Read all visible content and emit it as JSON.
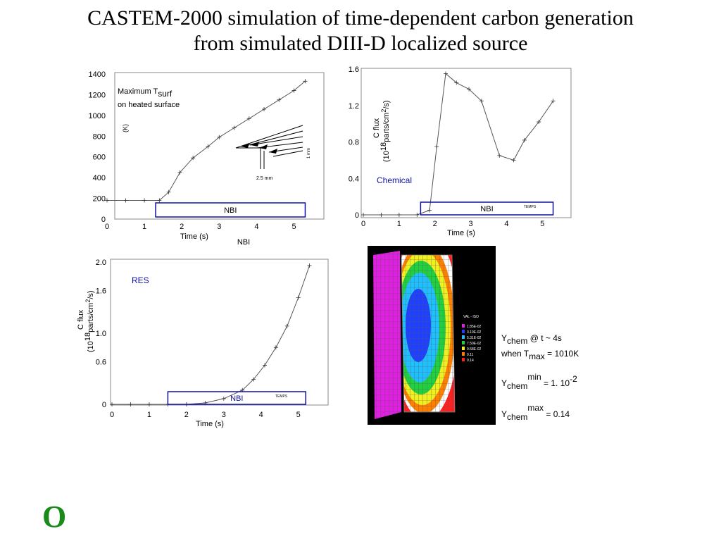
{
  "slide": {
    "title_line1": "CASTEM-2000 simulation of time-dependent carbon generation",
    "title_line2": "from simulated DIII-D localized source",
    "logo_text": "O"
  },
  "chart_data": [
    {
      "type": "line",
      "id": "temperature",
      "annotation_lines": [
        "Maximum T",
        "on heated surface"
      ],
      "annotation_subscript": "surf",
      "ylabel": "(K)",
      "xlabel": "Time (s)",
      "x_ticks": [
        "0",
        "1",
        "2",
        "3",
        "4",
        "5"
      ],
      "y_ticks": [
        "0",
        "200",
        "400",
        "600",
        "800",
        "1000",
        "1200",
        "1400"
      ],
      "xlim": [
        0,
        5.8
      ],
      "ylim": [
        0,
        1400
      ],
      "nbi_label": "NBI",
      "nbi_label_below": "NBI",
      "nbi_range": [
        1.3,
        5.3
      ],
      "inset_labels": {
        "width": "2.5 mm",
        "height": "1 mm"
      },
      "series": [
        {
          "x": [
            0,
            0.5,
            1.0,
            1.4,
            1.65,
            1.95,
            2.3,
            2.7,
            3.0,
            3.4,
            3.8,
            4.2,
            4.6,
            5.0,
            5.3
          ],
          "y": [
            180,
            180,
            180,
            180,
            260,
            450,
            590,
            700,
            790,
            880,
            970,
            1060,
            1150,
            1240,
            1330
          ]
        }
      ]
    },
    {
      "type": "line",
      "id": "chemical",
      "ylabel": "C flux",
      "ylabel_units": "(10",
      "ylabel_exp": "18",
      "ylabel_units2": "parts/cm",
      "ylabel_exp2": "2",
      "ylabel_units3": "/s)",
      "xlabel": "Time (s)",
      "x_ticks": [
        "0",
        "1",
        "2",
        "3",
        "4",
        "5"
      ],
      "y_ticks": [
        "0",
        "0.4",
        "0.8",
        "1.2",
        "1.6"
      ],
      "xlim": [
        0,
        5.8
      ],
      "ylim": [
        0,
        1.6
      ],
      "series_label": "Chemical",
      "nbi_label": "NBI",
      "temps_label": "TEMPS",
      "nbi_range": [
        1.6,
        5.3
      ],
      "series": [
        {
          "x": [
            0,
            0.5,
            1.0,
            1.5,
            1.85,
            2.05,
            2.3,
            2.6,
            2.95,
            3.3,
            3.8,
            4.2,
            4.5,
            4.9,
            5.3
          ],
          "y": [
            0,
            0,
            0,
            0,
            0.05,
            0.75,
            1.55,
            1.45,
            1.38,
            1.25,
            0.65,
            0.6,
            0.82,
            1.02,
            1.25
          ]
        }
      ]
    },
    {
      "type": "line",
      "id": "res",
      "ylabel": "C flux",
      "ylabel_units": "(10",
      "ylabel_exp": "18",
      "ylabel_units2": "parts/cm",
      "ylabel_exp2": "2",
      "ylabel_units3": "/s)",
      "xlabel": "Time (s)",
      "x_ticks": [
        "0",
        "1",
        "2",
        "3",
        "4",
        "5"
      ],
      "y_ticks": [
        "0",
        "0.6",
        "1.0",
        "1.6",
        "2.0"
      ],
      "xlim": [
        0,
        5.8
      ],
      "ylim": [
        0,
        2.0
      ],
      "series_label": "RES",
      "nbi_label": "NBI",
      "temps_label": "TEMPS",
      "nbi_range": [
        1.5,
        5.2
      ],
      "series": [
        {
          "x": [
            0,
            0.5,
            1.0,
            1.5,
            2.0,
            2.5,
            3.0,
            3.5,
            3.8,
            4.1,
            4.4,
            4.7,
            5.0,
            5.3
          ],
          "y": [
            0,
            0,
            0,
            0,
            0,
            0.02,
            0.08,
            0.2,
            0.35,
            0.55,
            0.8,
            1.1,
            1.5,
            1.95
          ]
        }
      ]
    }
  ],
  "contour": {
    "legend_header": "VAL - ISO",
    "legend_values": [
      "1.85E-02",
      "3.19E-02",
      "5.31E-02",
      "7.50E-02",
      "9.58E-02",
      "0.11",
      "0.14"
    ],
    "legend_colors": [
      "#e020e0",
      "#2040ff",
      "#20c0ff",
      "#20d040",
      "#f0f020",
      "#ff8000",
      "#ff2020",
      "#ffffff"
    ]
  },
  "notes": {
    "y_symbol": "Y",
    "chem_sub": "chem",
    "line1_rest": " @ t ~ 4s",
    "line2_pre": "when T",
    "max_sub": "max",
    "line2_rest": " = 1010K",
    "min_sup": "min",
    "line3_val": " = 1. 10",
    "line3_exp": "-2",
    "max_sup": "max",
    "line4_val": " = 0.14"
  }
}
